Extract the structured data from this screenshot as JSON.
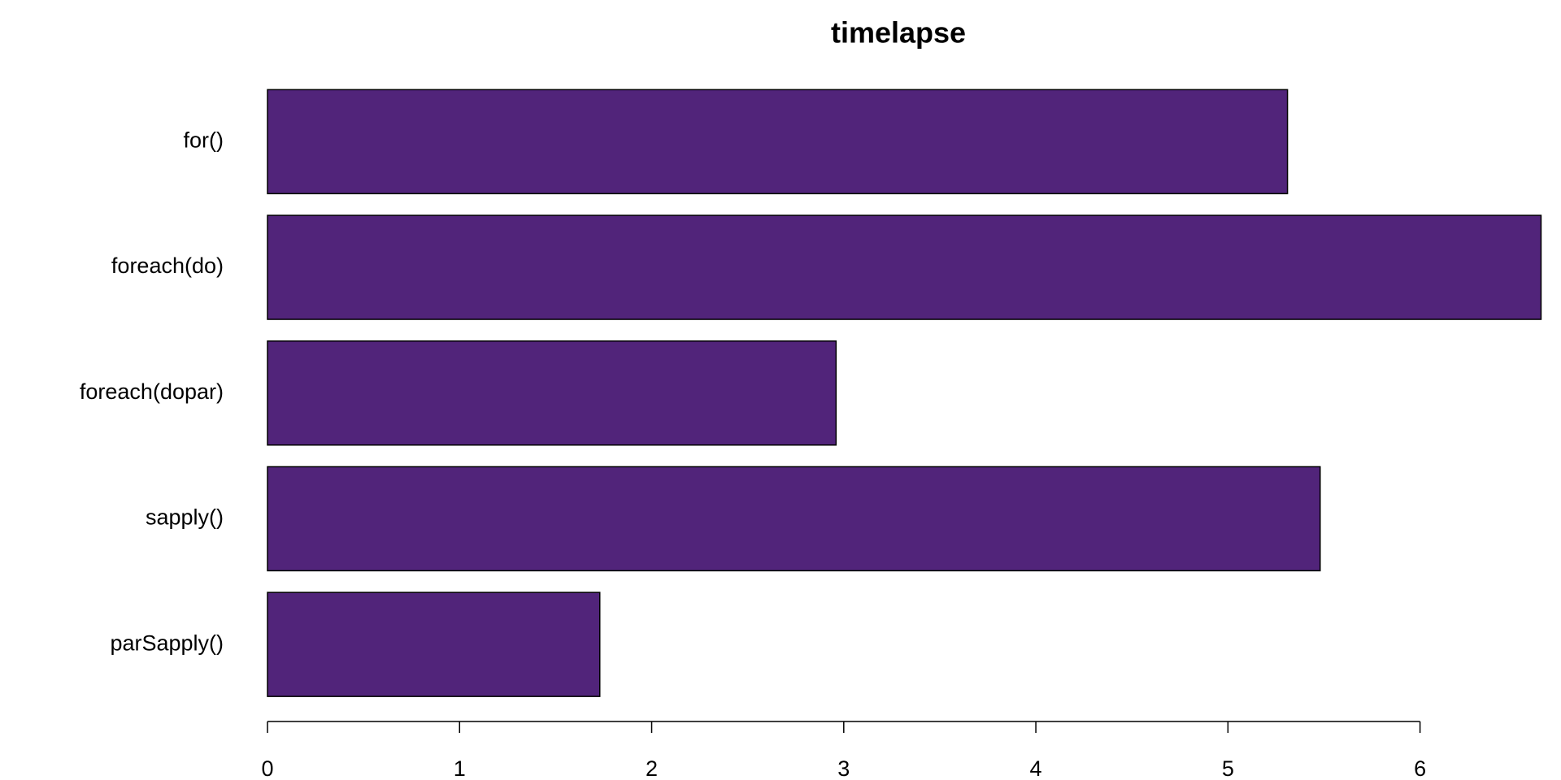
{
  "chart_data": {
    "type": "hbar",
    "title": "timelapse",
    "categories": [
      "for()",
      "foreach(do)",
      "foreach(dopar)",
      "sapply()",
      "parSapply()"
    ],
    "values": [
      5.31,
      6.63,
      2.96,
      5.48,
      1.73
    ],
    "color": "#51247a",
    "xlim": [
      0,
      6.7
    ],
    "xticks": [
      0,
      1,
      2,
      3,
      4,
      5,
      6
    ]
  }
}
